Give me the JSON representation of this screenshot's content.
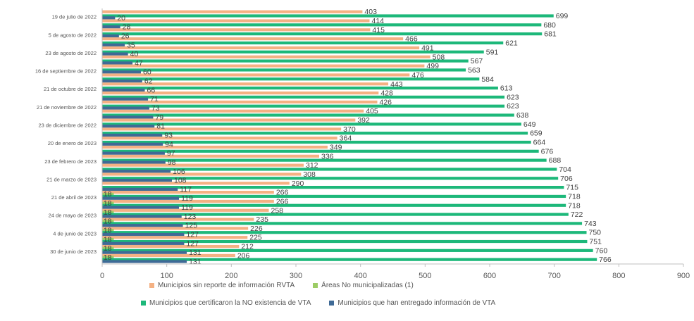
{
  "chart_data": {
    "type": "bar",
    "orientation": "horizontal",
    "x_axis": {
      "min": 0,
      "max": 900,
      "ticks": [
        0,
        100,
        200,
        300,
        400,
        500,
        600,
        700,
        800,
        900
      ]
    },
    "grid": false,
    "legend_position": "bottom",
    "category_labels": [
      "19 de julio de 2022",
      "5 de agosto de 2022",
      "23 de agosto de 2022",
      "16 de septiembre de 2022",
      "21 de octubre de 2022",
      "21 de noviembre de 2022",
      "23 de diciembre de 2022",
      "20 de enero de 2023",
      "23 de febrero de 2023",
      "21 de marzo de 2023",
      "21 de abril de 2023",
      "24 de mayo de 2023",
      "4 de junio de 2023",
      "30 de junio de 2023"
    ],
    "series": [
      {
        "name": "Municipios sin reporte de información RVTA",
        "color": "#f4b183",
        "values": [
          403,
          414,
          415,
          466,
          491,
          508,
          499,
          476,
          443,
          428,
          426,
          405,
          392,
          370,
          364,
          349,
          336,
          312,
          308,
          290,
          266,
          266,
          258,
          235,
          226,
          225,
          212,
          206
        ]
      },
      {
        "name": "Áreas No municipalizadas (1)",
        "color": "#9ccc65",
        "values": [
          null,
          null,
          null,
          null,
          null,
          null,
          null,
          null,
          null,
          null,
          null,
          null,
          null,
          null,
          null,
          null,
          null,
          null,
          null,
          null,
          18,
          18,
          18,
          18,
          18,
          18,
          18,
          18
        ]
      },
      {
        "name": "Municipios que certificaron la NO existencia de VTA",
        "color": "#1db87a",
        "values": [
          699,
          680,
          681,
          621,
          591,
          567,
          563,
          584,
          613,
          623,
          623,
          638,
          649,
          659,
          664,
          676,
          688,
          704,
          706,
          715,
          718,
          718,
          722,
          743,
          750,
          751,
          760,
          766
        ]
      },
      {
        "name": "Municipios que han entregado información de VTA",
        "color": "#3f6a96",
        "values": [
          20,
          28,
          26,
          35,
          40,
          47,
          60,
          62,
          66,
          71,
          73,
          79,
          81,
          93,
          94,
          97,
          98,
          106,
          108,
          117,
          119,
          119,
          123,
          125,
          127,
          127,
          131,
          131
        ]
      }
    ]
  },
  "legend": {
    "item_1": "Municipios sin reporte de información RVTA",
    "item_2": "Áreas No municipalizadas (1)",
    "item_3": "Municipios que certificaron la NO existencia de VTA",
    "item_4": "Municipios que han entregado información de VTA"
  }
}
